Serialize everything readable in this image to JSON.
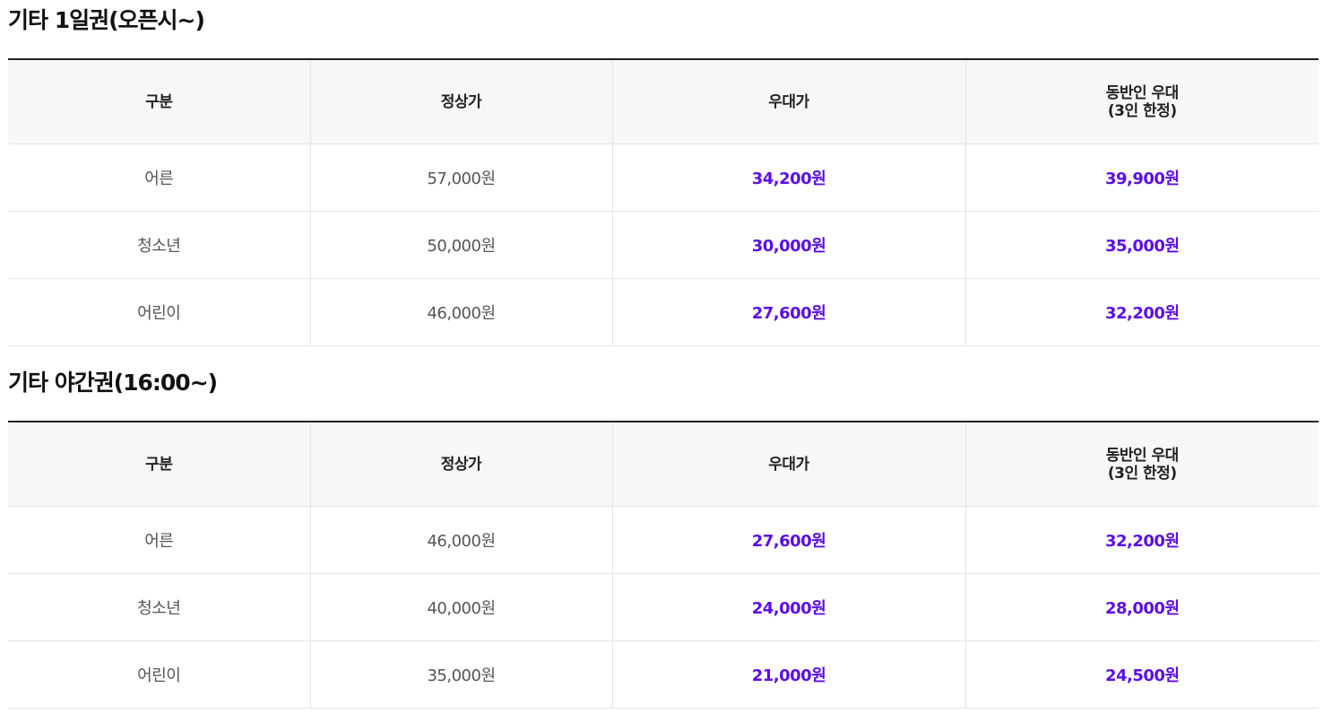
{
  "colors": {
    "accent": "#5b0ee6",
    "header_bg": "#f7f7f7",
    "border": "#e4e4e4",
    "text": "#555555"
  },
  "columns": [
    "구분",
    "정상가",
    "우대가",
    "동반인 우대",
    "(3인 한정)"
  ],
  "sections": [
    {
      "title": "기타 1일권(오픈시~)",
      "rows": [
        {
          "category": "어른",
          "regular": "57,000원",
          "discount": "34,200원",
          "companion": "39,900원"
        },
        {
          "category": "청소년",
          "regular": "50,000원",
          "discount": "30,000원",
          "companion": "35,000원"
        },
        {
          "category": "어린이",
          "regular": "46,000원",
          "discount": "27,600원",
          "companion": "32,200원"
        }
      ]
    },
    {
      "title": "기타 야간권(16:00~)",
      "rows": [
        {
          "category": "어른",
          "regular": "46,000원",
          "discount": "27,600원",
          "companion": "32,200원"
        },
        {
          "category": "청소년",
          "regular": "40,000원",
          "discount": "24,000원",
          "companion": "28,000원"
        },
        {
          "category": "어린이",
          "regular": "35,000원",
          "discount": "21,000원",
          "companion": "24,500원"
        }
      ]
    }
  ]
}
